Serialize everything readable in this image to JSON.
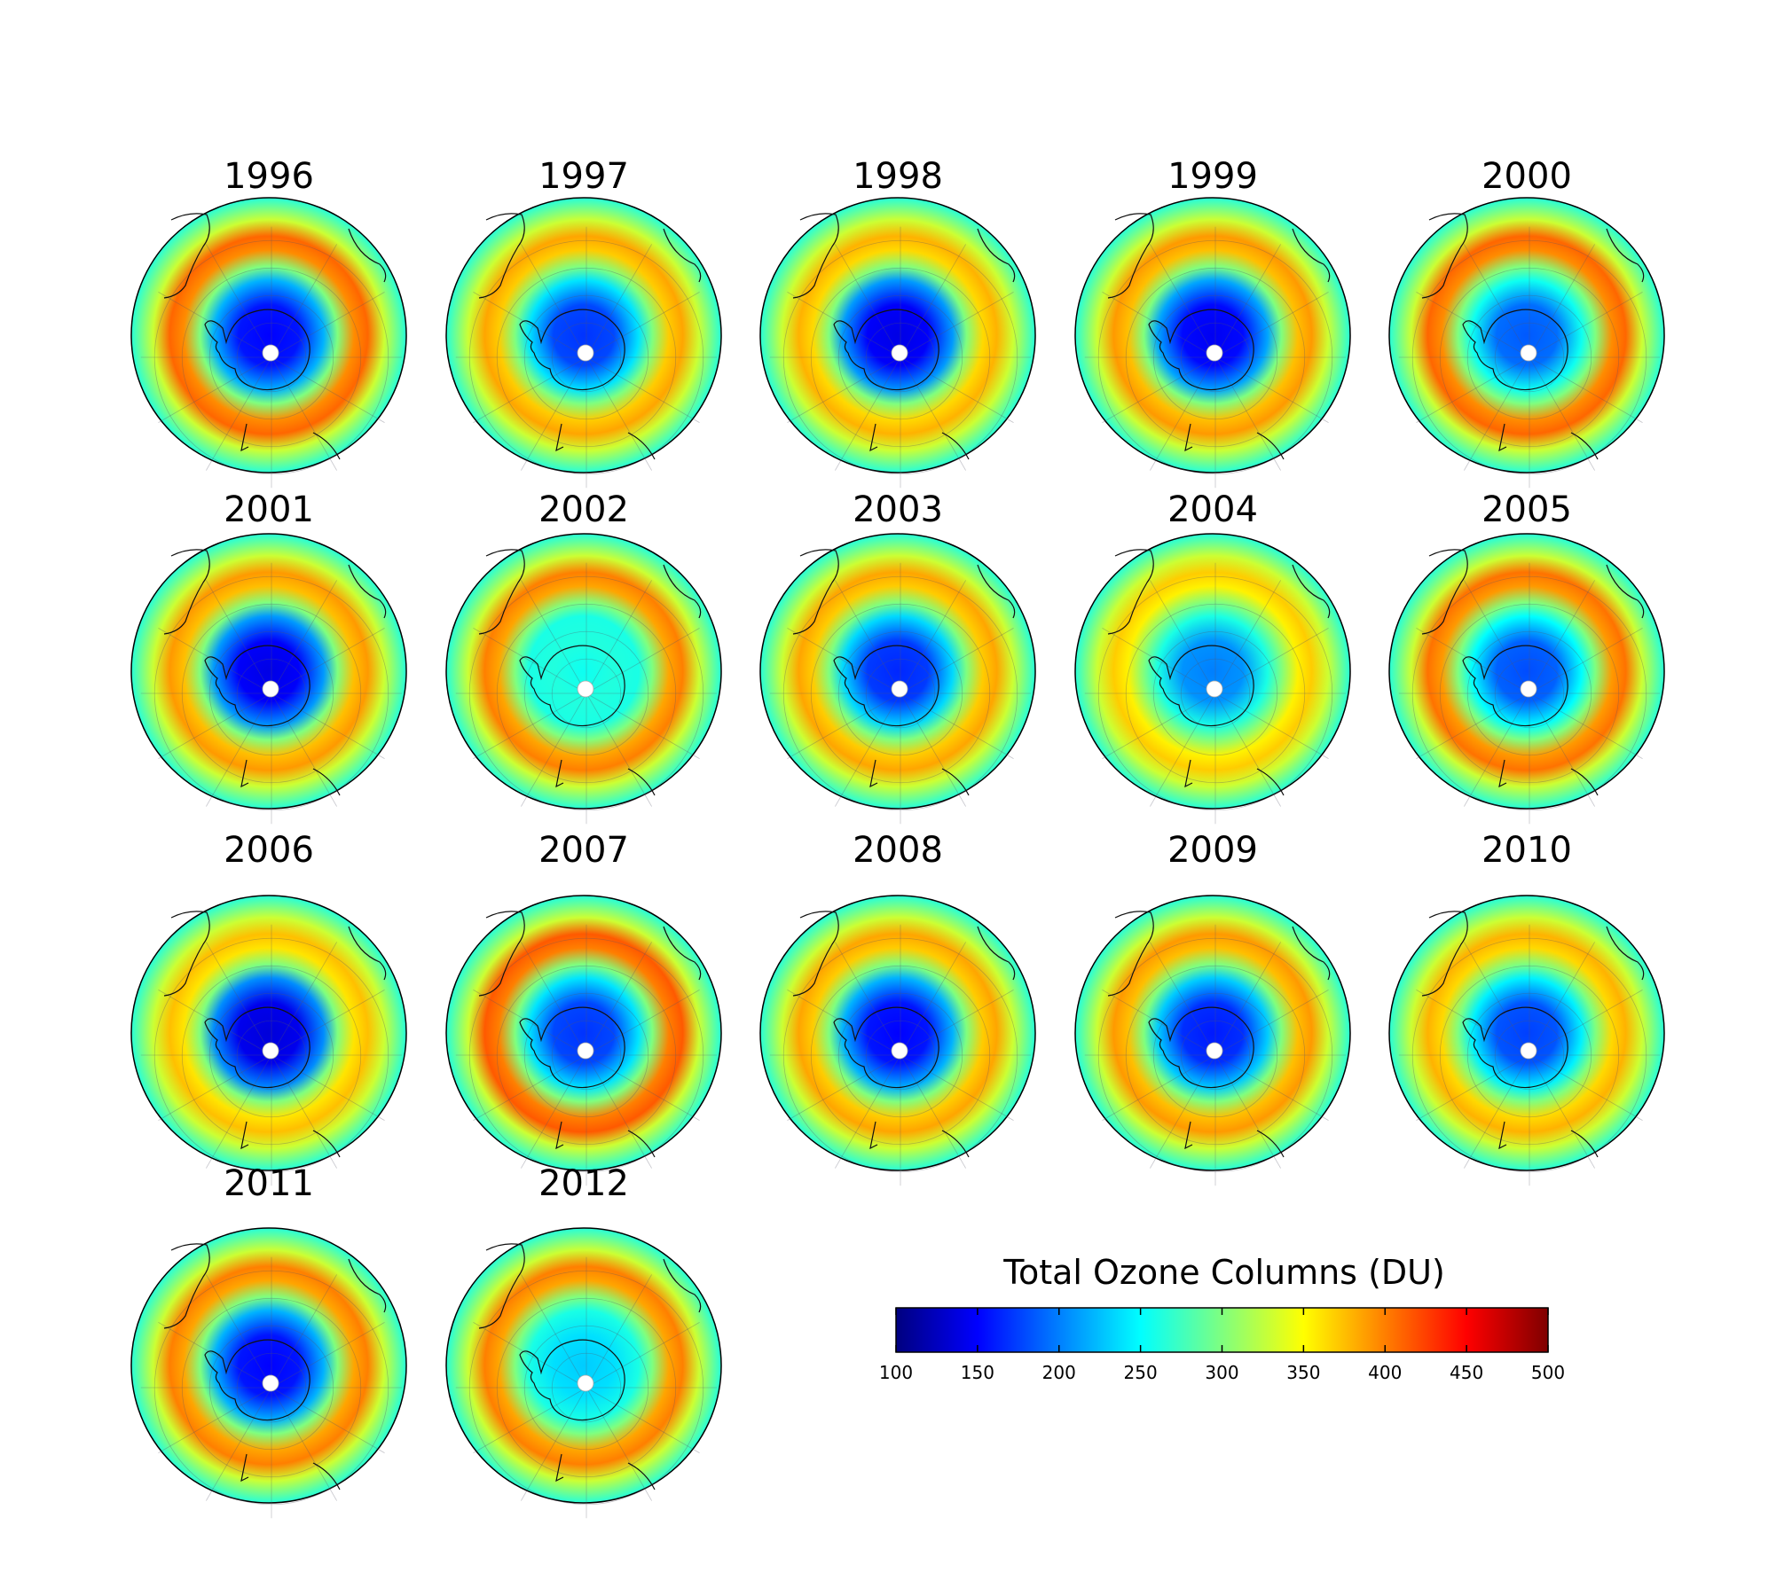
{
  "figure": {
    "years": [
      "1996",
      "1997",
      "1998",
      "1999",
      "2000",
      "2001",
      "2002",
      "2003",
      "2004",
      "2005",
      "2006",
      "2007",
      "2008",
      "2009",
      "2010",
      "2011",
      "2012"
    ],
    "colorbar": {
      "title": "Total Ozone Columns (DU)",
      "min": 100,
      "max": 500,
      "ticks": [
        "100",
        "150",
        "200",
        "250",
        "300",
        "350",
        "400",
        "450",
        "500"
      ],
      "colors": [
        "#00007f",
        "#0000ff",
        "#007fff",
        "#00ffff",
        "#7fff7f",
        "#ffff00",
        "#ff7f00",
        "#ff0000",
        "#7f0000"
      ]
    }
  },
  "chart_data": {
    "type": "heatmap",
    "title": "Total Ozone Columns (DU)",
    "units": "DU",
    "colorbar_range": [
      100,
      500
    ],
    "panels": [
      {
        "year": "1996",
        "hole_center_du": 150,
        "max_collar_du": 410
      },
      {
        "year": "1997",
        "hole_center_du": 170,
        "max_collar_du": 385
      },
      {
        "year": "1998",
        "hole_center_du": 140,
        "max_collar_du": 380
      },
      {
        "year": "1999",
        "hole_center_du": 145,
        "max_collar_du": 390
      },
      {
        "year": "2000",
        "hole_center_du": 185,
        "max_collar_du": 410
      },
      {
        "year": "2001",
        "hole_center_du": 140,
        "max_collar_du": 390
      },
      {
        "year": "2002",
        "hole_center_du": 255,
        "max_collar_du": 400
      },
      {
        "year": "2003",
        "hole_center_du": 165,
        "max_collar_du": 385
      },
      {
        "year": "2004",
        "hole_center_du": 200,
        "max_collar_du": 370
      },
      {
        "year": "2005",
        "hole_center_du": 180,
        "max_collar_du": 405
      },
      {
        "year": "2006",
        "hole_center_du": 135,
        "max_collar_du": 375
      },
      {
        "year": "2007",
        "hole_center_du": 170,
        "max_collar_du": 415
      },
      {
        "year": "2008",
        "hole_center_du": 150,
        "max_collar_du": 385
      },
      {
        "year": "2009",
        "hole_center_du": 160,
        "max_collar_du": 390
      },
      {
        "year": "2010",
        "hole_center_du": 175,
        "max_collar_du": 380
      },
      {
        "year": "2011",
        "hole_center_du": 150,
        "max_collar_du": 400
      },
      {
        "year": "2012",
        "hole_center_du": 230,
        "max_collar_du": 400
      }
    ]
  }
}
